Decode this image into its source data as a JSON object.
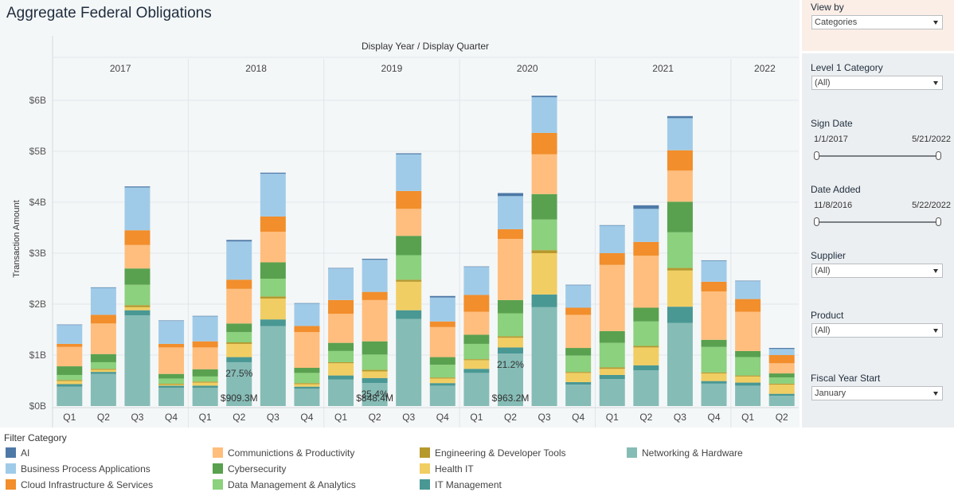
{
  "header": {
    "title": "Aggregate Federal Obligations"
  },
  "filters": {
    "view_by": {
      "label": "View by",
      "value": "Categories"
    },
    "level1": {
      "label": "Level 1 Category",
      "value": "(All)"
    },
    "sign_date": {
      "label": "Sign Date",
      "start": "1/1/2017",
      "end": "5/21/2022"
    },
    "date_added": {
      "label": "Date Added",
      "start": "11/8/2016",
      "end": "5/22/2022"
    },
    "supplier": {
      "label": "Supplier",
      "value": "(All)"
    },
    "product": {
      "label": "Product",
      "value": "(All)"
    },
    "fiscal_year": {
      "label": "Fiscal Year Start",
      "value": "January"
    }
  },
  "legend": {
    "title": "Filter Category",
    "items": [
      {
        "name": "AI",
        "color": "#4e79a7"
      },
      {
        "name": "Business Process Applications",
        "color": "#a0cbe8"
      },
      {
        "name": "Cloud Infrastructure & Services",
        "color": "#f28e2b"
      },
      {
        "name": "Communictions & Productivity",
        "color": "#ffbe7d"
      },
      {
        "name": "Cybersecurity",
        "color": "#59a14f"
      },
      {
        "name": "Data Management & Analytics",
        "color": "#8cd17d"
      },
      {
        "name": "Engineering & Developer Tools",
        "color": "#b6992d"
      },
      {
        "name": "Health IT",
        "color": "#f1ce63"
      },
      {
        "name": "IT Management",
        "color": "#499894"
      },
      {
        "name": "Networking & Hardware",
        "color": "#86bcb6"
      }
    ]
  },
  "chart_data": {
    "type": "bar",
    "stacked": true,
    "title": "Display Year / Display Quarter",
    "ylabel": "Transaction Amount",
    "ylim": [
      0,
      6.2
    ],
    "yticks": [
      "$0B",
      "$1B",
      "$2B",
      "$3B",
      "$4B",
      "$5B",
      "$6B"
    ],
    "years": [
      {
        "label": "2017",
        "quarters": 4
      },
      {
        "label": "2018",
        "quarters": 4
      },
      {
        "label": "2019",
        "quarters": 4
      },
      {
        "label": "2020",
        "quarters": 4
      },
      {
        "label": "2021",
        "quarters": 4
      },
      {
        "label": "2022",
        "quarters": 2
      }
    ],
    "categories": [
      "Q1",
      "Q2",
      "Q3",
      "Q4",
      "Q1",
      "Q2",
      "Q3",
      "Q4",
      "Q1",
      "Q2",
      "Q3",
      "Q4",
      "Q1",
      "Q2",
      "Q3",
      "Q4",
      "Q1",
      "Q2",
      "Q3",
      "Q4",
      "Q1",
      "Q2"
    ],
    "series": [
      {
        "name": "Networking & Hardware",
        "color": "#86bcb6",
        "values": [
          0.38,
          0.63,
          1.78,
          0.36,
          0.36,
          0.86,
          1.57,
          0.34,
          0.52,
          0.45,
          1.71,
          0.4,
          0.65,
          1.03,
          1.94,
          0.42,
          0.53,
          0.7,
          1.63,
          0.44,
          0.4,
          0.2
        ]
      },
      {
        "name": "IT Management",
        "color": "#499894",
        "values": [
          0.05,
          0.04,
          0.1,
          0.04,
          0.04,
          0.1,
          0.13,
          0.04,
          0.08,
          0.1,
          0.17,
          0.05,
          0.08,
          0.12,
          0.25,
          0.05,
          0.08,
          0.1,
          0.32,
          0.05,
          0.06,
          0.04
        ]
      },
      {
        "name": "Health IT",
        "color": "#f1ce63",
        "values": [
          0.06,
          0.04,
          0.06,
          0.02,
          0.06,
          0.26,
          0.41,
          0.05,
          0.24,
          0.13,
          0.56,
          0.09,
          0.17,
          0.19,
          0.81,
          0.18,
          0.12,
          0.35,
          0.71,
          0.15,
          0.12,
          0.18
        ]
      },
      {
        "name": "Engineering & Developer Tools",
        "color": "#b6992d",
        "values": [
          0.02,
          0.02,
          0.04,
          0.02,
          0.02,
          0.03,
          0.04,
          0.02,
          0.02,
          0.03,
          0.04,
          0.02,
          0.02,
          0.03,
          0.06,
          0.02,
          0.03,
          0.03,
          0.05,
          0.02,
          0.02,
          0.02
        ]
      },
      {
        "name": "Data Management & Analytics",
        "color": "#8cd17d",
        "values": [
          0.1,
          0.13,
          0.4,
          0.1,
          0.1,
          0.2,
          0.35,
          0.2,
          0.22,
          0.3,
          0.48,
          0.25,
          0.3,
          0.45,
          0.6,
          0.32,
          0.48,
          0.48,
          0.7,
          0.5,
          0.36,
          0.12
        ]
      },
      {
        "name": "Cybersecurity",
        "color": "#59a14f",
        "values": [
          0.17,
          0.16,
          0.32,
          0.09,
          0.14,
          0.17,
          0.32,
          0.1,
          0.16,
          0.26,
          0.38,
          0.15,
          0.18,
          0.26,
          0.5,
          0.15,
          0.23,
          0.27,
          0.6,
          0.14,
          0.12,
          0.08
        ]
      },
      {
        "name": "Communictions & Productivity",
        "color": "#ffbe7d",
        "values": [
          0.38,
          0.6,
          0.46,
          0.52,
          0.43,
          0.68,
          0.6,
          0.7,
          0.57,
          0.81,
          0.53,
          0.59,
          0.45,
          1.2,
          0.78,
          0.65,
          1.3,
          1.02,
          0.61,
          0.95,
          0.77,
          0.2
        ]
      },
      {
        "name": "Cloud Infrastructure & Services",
        "color": "#f28e2b",
        "values": [
          0.06,
          0.17,
          0.29,
          0.07,
          0.12,
          0.18,
          0.3,
          0.12,
          0.27,
          0.16,
          0.35,
          0.11,
          0.33,
          0.19,
          0.42,
          0.14,
          0.23,
          0.27,
          0.4,
          0.19,
          0.25,
          0.16
        ]
      },
      {
        "name": "Business Process Applications",
        "color": "#a0cbe8",
        "values": [
          0.37,
          0.53,
          0.84,
          0.45,
          0.49,
          0.75,
          0.84,
          0.44,
          0.62,
          0.63,
          0.72,
          0.47,
          0.55,
          0.65,
          0.7,
          0.44,
          0.54,
          0.65,
          0.63,
          0.41,
          0.35,
          0.12
        ]
      },
      {
        "name": "AI",
        "color": "#4e79a7",
        "values": [
          0.01,
          0.01,
          0.02,
          0.01,
          0.01,
          0.03,
          0.02,
          0.01,
          0.01,
          0.02,
          0.02,
          0.03,
          0.01,
          0.06,
          0.03,
          0.01,
          0.01,
          0.07,
          0.04,
          0.01,
          0.01,
          0.02
        ]
      }
    ],
    "annotations": [
      {
        "bar": 5,
        "percent": "27.5%",
        "amount": "$909.3M"
      },
      {
        "bar": 9,
        "percent": "25.4%",
        "amount": "$848.4M"
      },
      {
        "bar": 13,
        "percent": "21.2%",
        "amount": "$963.2M"
      }
    ]
  }
}
